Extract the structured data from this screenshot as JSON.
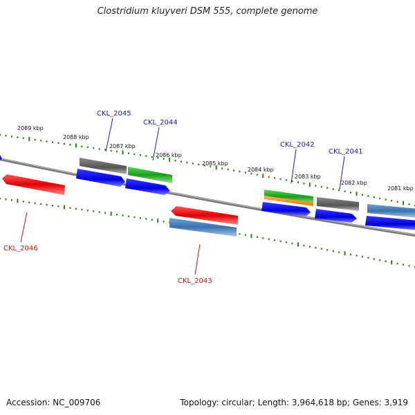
{
  "title": "Clostridium kluyveri DSM 555, complete genome",
  "footer": {
    "accession": "Accession: NC_009706",
    "summary": "Topology: circular; Length: 3,964,618 bp; Genes: 3,919"
  },
  "colors": {
    "backbone": "#7a7a7a",
    "tick": "#2e7d1a",
    "label_blue": "#1a1aa6",
    "label_red": "#cc1111"
  },
  "kbp_labels": [
    "2089 kbp",
    "2088 kbp",
    "2087 kbp",
    "2086 kbp",
    "2085 kbp",
    "2084 kbp",
    "2083 kbp",
    "2082 kbp",
    "2081 kbp"
  ],
  "gene_labels": [
    {
      "id": "CKL_2045",
      "color": "#1a1aa6"
    },
    {
      "id": "CKL_2044",
      "color": "#1a1aa6"
    },
    {
      "id": "CKL_2042",
      "color": "#1a1aa6"
    },
    {
      "id": "CKL_2041",
      "color": "#1a1aa6"
    },
    {
      "id": "CKL_2046",
      "color": "#cc1111"
    },
    {
      "id": "CKL_2043",
      "color": "#cc1111"
    }
  ]
}
